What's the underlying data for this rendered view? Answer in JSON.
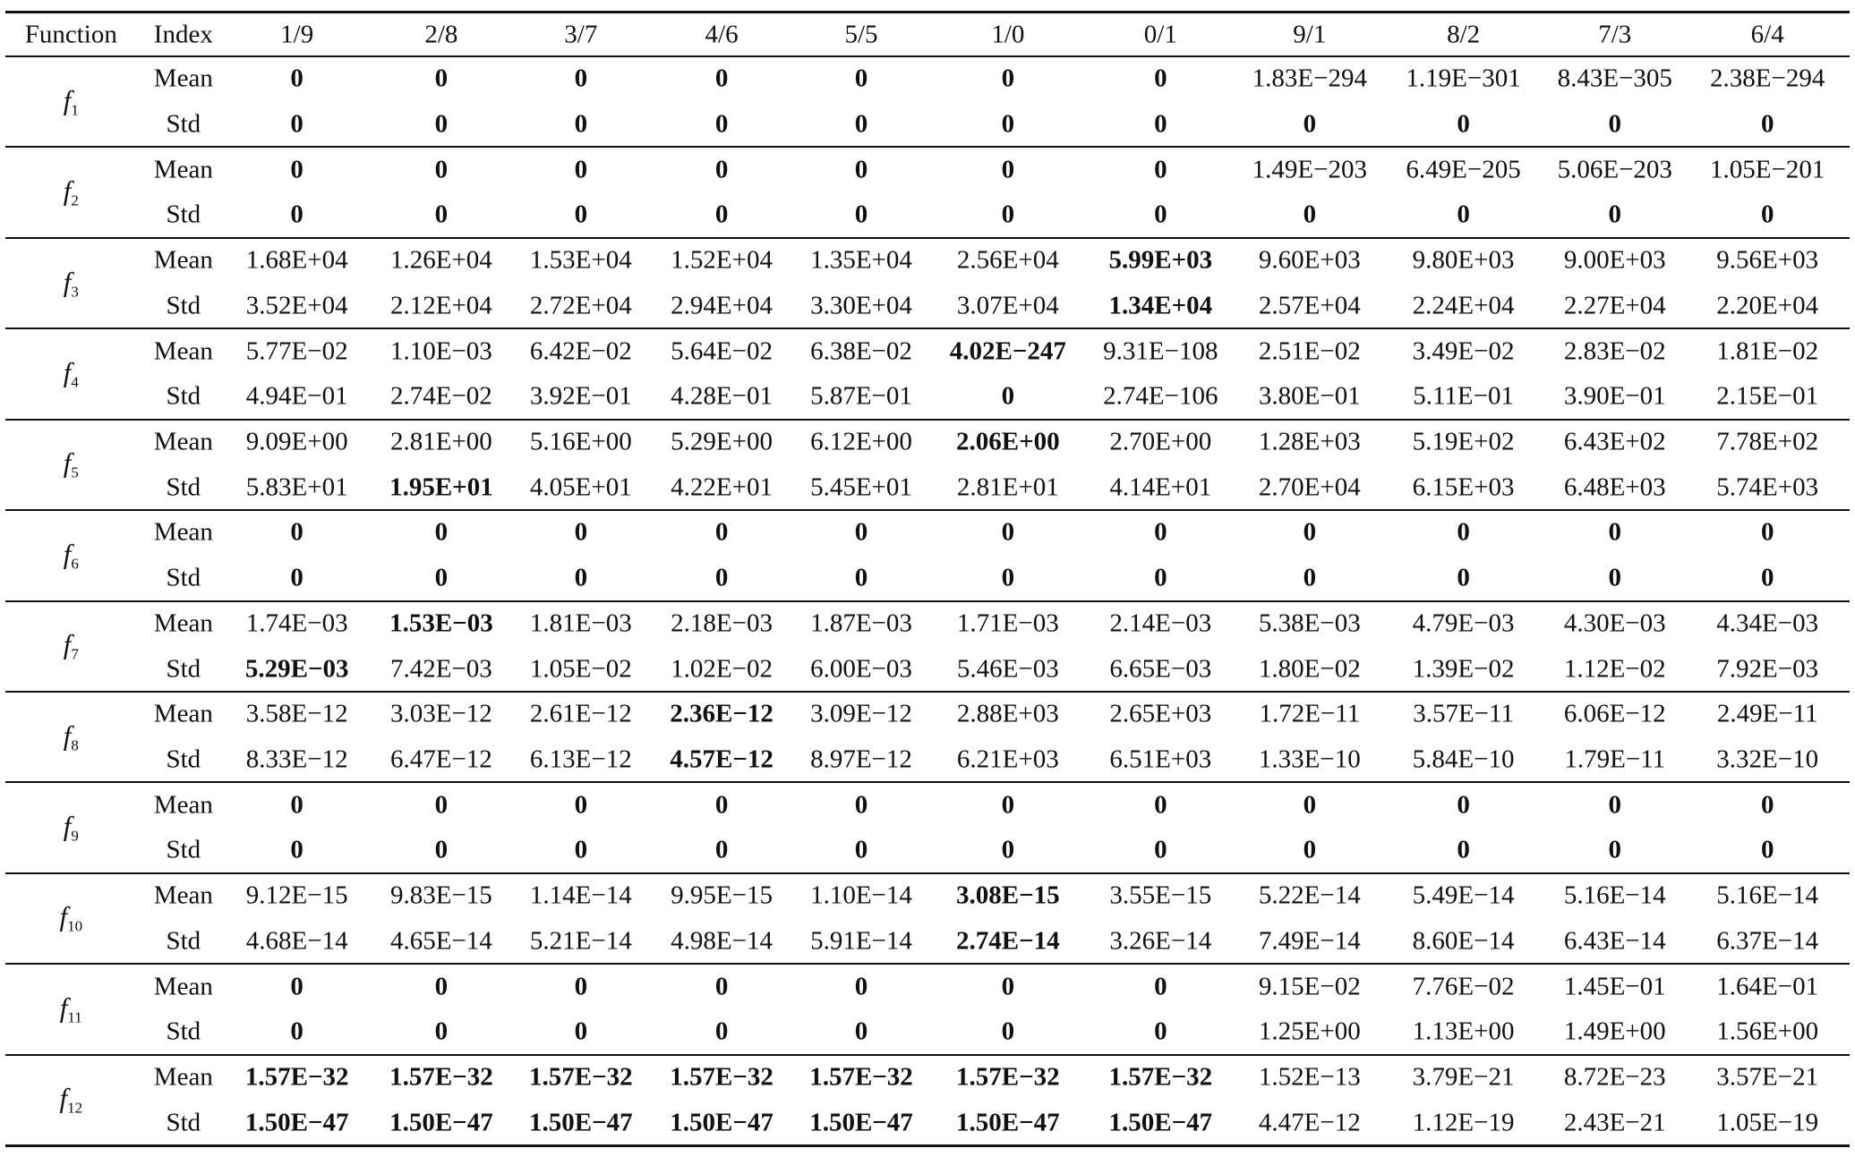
{
  "header": [
    "Function",
    "Index",
    "1/9",
    "2/8",
    "3/7",
    "4/6",
    "5/5",
    "1/0",
    "0/1",
    "9/1",
    "8/2",
    "7/3",
    "6/4"
  ],
  "groups": [
    {
      "symbol": "f",
      "subscript": "1",
      "rows": [
        {
          "index": "Mean",
          "values": [
            "0",
            "0",
            "0",
            "0",
            "0",
            "0",
            "0",
            "1.83E−294",
            "1.19E−301",
            "8.43E−305",
            "2.38E−294"
          ],
          "bold": [
            0,
            1,
            2,
            3,
            4,
            5,
            6
          ]
        },
        {
          "index": "Std",
          "values": [
            "0",
            "0",
            "0",
            "0",
            "0",
            "0",
            "0",
            "0",
            "0",
            "0",
            "0"
          ],
          "bold": [
            0,
            1,
            2,
            3,
            4,
            5,
            6,
            7,
            8,
            9,
            10
          ]
        }
      ]
    },
    {
      "symbol": "f",
      "subscript": "2",
      "rows": [
        {
          "index": "Mean",
          "values": [
            "0",
            "0",
            "0",
            "0",
            "0",
            "0",
            "0",
            "1.49E−203",
            "6.49E−205",
            "5.06E−203",
            "1.05E−201"
          ],
          "bold": [
            0,
            1,
            2,
            3,
            4,
            5,
            6
          ]
        },
        {
          "index": "Std",
          "values": [
            "0",
            "0",
            "0",
            "0",
            "0",
            "0",
            "0",
            "0",
            "0",
            "0",
            "0"
          ],
          "bold": [
            0,
            1,
            2,
            3,
            4,
            5,
            6,
            7,
            8,
            9,
            10
          ]
        }
      ]
    },
    {
      "symbol": "f",
      "subscript": "3",
      "rows": [
        {
          "index": "Mean",
          "values": [
            "1.68E+04",
            "1.26E+04",
            "1.53E+04",
            "1.52E+04",
            "1.35E+04",
            "2.56E+04",
            "5.99E+03",
            "9.60E+03",
            "9.80E+03",
            "9.00E+03",
            "9.56E+03"
          ],
          "bold": [
            6
          ]
        },
        {
          "index": "Std",
          "values": [
            "3.52E+04",
            "2.12E+04",
            "2.72E+04",
            "2.94E+04",
            "3.30E+04",
            "3.07E+04",
            "1.34E+04",
            "2.57E+04",
            "2.24E+04",
            "2.27E+04",
            "2.20E+04"
          ],
          "bold": [
            6
          ]
        }
      ]
    },
    {
      "symbol": "f",
      "subscript": "4",
      "rows": [
        {
          "index": "Mean",
          "values": [
            "5.77E−02",
            "1.10E−03",
            "6.42E−02",
            "5.64E−02",
            "6.38E−02",
            "4.02E−247",
            "9.31E−108",
            "2.51E−02",
            "3.49E−02",
            "2.83E−02",
            "1.81E−02"
          ],
          "bold": [
            5
          ]
        },
        {
          "index": "Std",
          "values": [
            "4.94E−01",
            "2.74E−02",
            "3.92E−01",
            "4.28E−01",
            "5.87E−01",
            "0",
            "2.74E−106",
            "3.80E−01",
            "5.11E−01",
            "3.90E−01",
            "2.15E−01"
          ],
          "bold": [
            5
          ]
        }
      ]
    },
    {
      "symbol": "f",
      "subscript": "5",
      "rows": [
        {
          "index": "Mean",
          "values": [
            "9.09E+00",
            "2.81E+00",
            "5.16E+00",
            "5.29E+00",
            "6.12E+00",
            "2.06E+00",
            "2.70E+00",
            "1.28E+03",
            "5.19E+02",
            "6.43E+02",
            "7.78E+02"
          ],
          "bold": [
            5
          ]
        },
        {
          "index": "Std",
          "values": [
            "5.83E+01",
            "1.95E+01",
            "4.05E+01",
            "4.22E+01",
            "5.45E+01",
            "2.81E+01",
            "4.14E+01",
            "2.70E+04",
            "6.15E+03",
            "6.48E+03",
            "5.74E+03"
          ],
          "bold": [
            1
          ]
        }
      ]
    },
    {
      "symbol": "f",
      "subscript": "6",
      "rows": [
        {
          "index": "Mean",
          "values": [
            "0",
            "0",
            "0",
            "0",
            "0",
            "0",
            "0",
            "0",
            "0",
            "0",
            "0"
          ],
          "bold": [
            0,
            1,
            2,
            3,
            4,
            5,
            6,
            7,
            8,
            9,
            10
          ]
        },
        {
          "index": "Std",
          "values": [
            "0",
            "0",
            "0",
            "0",
            "0",
            "0",
            "0",
            "0",
            "0",
            "0",
            "0"
          ],
          "bold": [
            0,
            1,
            2,
            3,
            4,
            5,
            6,
            7,
            8,
            9,
            10
          ]
        }
      ]
    },
    {
      "symbol": "f",
      "subscript": "7",
      "rows": [
        {
          "index": "Mean",
          "values": [
            "1.74E−03",
            "1.53E−03",
            "1.81E−03",
            "2.18E−03",
            "1.87E−03",
            "1.71E−03",
            "2.14E−03",
            "5.38E−03",
            "4.79E−03",
            "4.30E−03",
            "4.34E−03"
          ],
          "bold": [
            1
          ]
        },
        {
          "index": "Std",
          "values": [
            "5.29E−03",
            "7.42E−03",
            "1.05E−02",
            "1.02E−02",
            "6.00E−03",
            "5.46E−03",
            "6.65E−03",
            "1.80E−02",
            "1.39E−02",
            "1.12E−02",
            "7.92E−03"
          ],
          "bold": [
            0
          ]
        }
      ]
    },
    {
      "symbol": "f",
      "subscript": "8",
      "rows": [
        {
          "index": "Mean",
          "values": [
            "3.58E−12",
            "3.03E−12",
            "2.61E−12",
            "2.36E−12",
            "3.09E−12",
            "2.88E+03",
            "2.65E+03",
            "1.72E−11",
            "3.57E−11",
            "6.06E−12",
            "2.49E−11"
          ],
          "bold": [
            3
          ]
        },
        {
          "index": "Std",
          "values": [
            "8.33E−12",
            "6.47E−12",
            "6.13E−12",
            "4.57E−12",
            "8.97E−12",
            "6.21E+03",
            "6.51E+03",
            "1.33E−10",
            "5.84E−10",
            "1.79E−11",
            "3.32E−10"
          ],
          "bold": [
            3
          ]
        }
      ]
    },
    {
      "symbol": "f",
      "subscript": "9",
      "rows": [
        {
          "index": "Mean",
          "values": [
            "0",
            "0",
            "0",
            "0",
            "0",
            "0",
            "0",
            "0",
            "0",
            "0",
            "0"
          ],
          "bold": [
            0,
            1,
            2,
            3,
            4,
            5,
            6,
            7,
            8,
            9,
            10
          ]
        },
        {
          "index": "Std",
          "values": [
            "0",
            "0",
            "0",
            "0",
            "0",
            "0",
            "0",
            "0",
            "0",
            "0",
            "0"
          ],
          "bold": [
            0,
            1,
            2,
            3,
            4,
            5,
            6,
            7,
            8,
            9,
            10
          ]
        }
      ]
    },
    {
      "symbol": "f",
      "subscript": "10",
      "rows": [
        {
          "index": "Mean",
          "values": [
            "9.12E−15",
            "9.83E−15",
            "1.14E−14",
            "9.95E−15",
            "1.10E−14",
            "3.08E−15",
            "3.55E−15",
            "5.22E−14",
            "5.49E−14",
            "5.16E−14",
            "5.16E−14"
          ],
          "bold": [
            5
          ]
        },
        {
          "index": "Std",
          "values": [
            "4.68E−14",
            "4.65E−14",
            "5.21E−14",
            "4.98E−14",
            "5.91E−14",
            "2.74E−14",
            "3.26E−14",
            "7.49E−14",
            "8.60E−14",
            "6.43E−14",
            "6.37E−14"
          ],
          "bold": [
            5
          ]
        }
      ]
    },
    {
      "symbol": "f",
      "subscript": "11",
      "rows": [
        {
          "index": "Mean",
          "values": [
            "0",
            "0",
            "0",
            "0",
            "0",
            "0",
            "0",
            "9.15E−02",
            "7.76E−02",
            "1.45E−01",
            "1.64E−01"
          ],
          "bold": [
            0,
            1,
            2,
            3,
            4,
            5,
            6
          ]
        },
        {
          "index": "Std",
          "values": [
            "0",
            "0",
            "0",
            "0",
            "0",
            "0",
            "0",
            "1.25E+00",
            "1.13E+00",
            "1.49E+00",
            "1.56E+00"
          ],
          "bold": [
            0,
            1,
            2,
            3,
            4,
            5,
            6
          ]
        }
      ]
    },
    {
      "symbol": "f",
      "subscript": "12",
      "rows": [
        {
          "index": "Mean",
          "values": [
            "1.57E−32",
            "1.57E−32",
            "1.57E−32",
            "1.57E−32",
            "1.57E−32",
            "1.57E−32",
            "1.57E−32",
            "1.52E−13",
            "3.79E−21",
            "8.72E−23",
            "3.57E−21"
          ],
          "bold": [
            0,
            1,
            2,
            3,
            4,
            5,
            6
          ]
        },
        {
          "index": "Std",
          "values": [
            "1.50E−47",
            "1.50E−47",
            "1.50E−47",
            "1.50E−47",
            "1.50E−47",
            "1.50E−47",
            "1.50E−47",
            "4.47E−12",
            "1.12E−19",
            "2.43E−21",
            "1.05E−19"
          ],
          "bold": [
            0,
            1,
            2,
            3,
            4,
            5,
            6
          ]
        }
      ]
    }
  ]
}
